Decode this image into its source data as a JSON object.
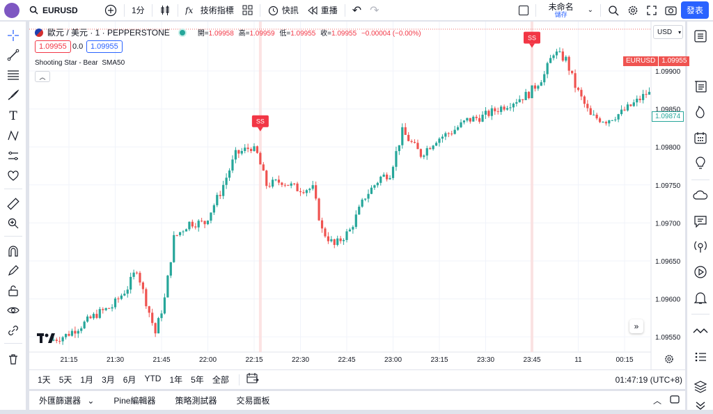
{
  "header": {
    "symbol": "EURUSD",
    "interval": "1分",
    "indicators_label": "技術指標",
    "alert_label": "快訊",
    "replay_label": "重播",
    "layout_name": "未命名",
    "save_label": "儲存",
    "publish_label": "發表"
  },
  "legend": {
    "title": "歐元 / 美元 · 1 · PEPPERSTONE",
    "open_label": "開=",
    "open": "1.09958",
    "high_label": "高=",
    "high": "1.09959",
    "low_label": "低=",
    "low": "1.09955",
    "close_label": "收=",
    "close": "1.09955",
    "change": "−0.00004 (−0.00%)",
    "bid": "1.09955",
    "spread": "0.0",
    "ask": "1.09955",
    "indicator_name": "Shooting Star - Bear",
    "indicator_param": "SMA50"
  },
  "axis": {
    "currency": "USD",
    "symbol_tag": "EURUSD",
    "last_price": "1.09955",
    "crosshair_price": "1.09874"
  },
  "timeframes": [
    "1天",
    "5天",
    "1月",
    "3月",
    "6月",
    "YTD",
    "1年",
    "5年",
    "全部"
  ],
  "clock": "01:47:19 (UTC+8)",
  "bottom_tabs": [
    "外匯篩選器",
    "Pine編輯器",
    "策略測試器",
    "交易面板"
  ],
  "colors": {
    "up": "#26a69a",
    "down": "#ef5350",
    "accent": "#2962ff",
    "signal": "#f23645"
  },
  "chart_data": {
    "type": "candlestick",
    "title": "歐元 / 美元 · 1 · PEPPERSTONE",
    "x_tick_labels": [
      "21:15",
      "21:30",
      "21:45",
      "22:00",
      "22:15",
      "22:30",
      "22:45",
      "23:00",
      "23:15",
      "23:30",
      "23:45",
      "11",
      "00:15"
    ],
    "y_tick_labels": [
      "1.09900",
      "1.09850",
      "1.09800",
      "1.09750",
      "1.09700",
      "1.09650",
      "1.09600",
      "1.09550"
    ],
    "ylim": [
      1.0953,
      1.09965
    ],
    "annotations": [
      {
        "label": "SS",
        "time": "22:17",
        "price": 1.09805
      },
      {
        "label": "SS",
        "time": "23:45",
        "price": 1.09915
      }
    ],
    "price_path": [
      [
        "21:10",
        1.09545
      ],
      [
        "21:15",
        1.09552
      ],
      [
        "21:20",
        1.09565
      ],
      [
        "21:25",
        1.0958
      ],
      [
        "21:30",
        1.0959
      ],
      [
        "21:35",
        1.09615
      ],
      [
        "21:38",
        1.0964
      ],
      [
        "21:40",
        1.0961
      ],
      [
        "21:44",
        1.09555
      ],
      [
        "21:47",
        1.096
      ],
      [
        "21:50",
        1.0968
      ],
      [
        "21:55",
        1.097
      ],
      [
        "22:00",
        1.097
      ],
      [
        "22:05",
        1.0974
      ],
      [
        "22:10",
        1.0979
      ],
      [
        "22:15",
        1.098
      ],
      [
        "22:17",
        1.0979
      ],
      [
        "22:20",
        1.0975
      ],
      [
        "22:25",
        1.09755
      ],
      [
        "22:30",
        1.09745
      ],
      [
        "22:35",
        1.09745
      ],
      [
        "22:38",
        1.0969
      ],
      [
        "22:42",
        1.0967
      ],
      [
        "22:47",
        1.0969
      ],
      [
        "22:52",
        1.09735
      ],
      [
        "22:57",
        1.0976
      ],
      [
        "23:00",
        1.09765
      ],
      [
        "23:04",
        1.0982
      ],
      [
        "23:10",
        1.0979
      ],
      [
        "23:15",
        1.0981
      ],
      [
        "23:20",
        1.0982
      ],
      [
        "23:25",
        1.09835
      ],
      [
        "23:30",
        1.0984
      ],
      [
        "23:35",
        1.0985
      ],
      [
        "23:40",
        1.0986
      ],
      [
        "23:45",
        1.0987
      ],
      [
        "23:50",
        1.09895
      ],
      [
        "23:53",
        1.09925
      ],
      [
        "23:57",
        1.09915
      ],
      [
        "00:00",
        1.0988
      ],
      [
        "00:05",
        1.0984
      ],
      [
        "00:10",
        1.09835
      ],
      [
        "00:15",
        1.09845
      ],
      [
        "00:20",
        1.0986
      ],
      [
        "00:23",
        1.0987
      ]
    ]
  }
}
